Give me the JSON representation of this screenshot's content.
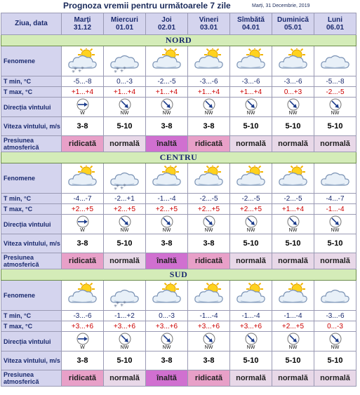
{
  "title": "Prognoza vremii pentru următoarele 7 zile",
  "date_text": "Marți, 31 Decembrie, 2019",
  "header": {
    "label": "Ziua, data",
    "days": [
      {
        "name": "Marți",
        "date": "31.12"
      },
      {
        "name": "Miercuri",
        "date": "01.01"
      },
      {
        "name": "Joi",
        "date": "02.01"
      },
      {
        "name": "Vineri",
        "date": "03.01"
      },
      {
        "name": "Sîmbătă",
        "date": "04.01"
      },
      {
        "name": "Duminică",
        "date": "05.01"
      },
      {
        "name": "Luni",
        "date": "06.01"
      }
    ]
  },
  "row_labels": {
    "fenomene": "Fenomene",
    "tmin": "T min, °C",
    "tmax": "T max, °C",
    "directia": "Direcția vîntului",
    "viteza": "Viteza vîntului, m/s",
    "presiunea": "Presiunea atmosferică"
  },
  "regions": [
    {
      "name": "NORD",
      "icons": [
        "sun-cloud-snow-icon",
        "cloud-snow-icon",
        "sun-cloud-icon",
        "sun-cloud-icon",
        "sun-cloud-icon",
        "sun-cloud-icon",
        "cloud-icon"
      ],
      "tmin": [
        "-5...-8",
        "0...-3",
        "-2...-5",
        "-3...-6",
        "-3...-6",
        "-3...-6",
        "-5...-8"
      ],
      "tmax": [
        "+1...+4",
        "+1...+4",
        "+1...+4",
        "+1...+4",
        "+1...+4",
        "0...+3",
        "-2...-5"
      ],
      "dir": [
        "W",
        "NW",
        "NW",
        "NW",
        "NW",
        "NW",
        "NW"
      ],
      "speed": [
        "3-8",
        "5-10",
        "3-8",
        "3-8",
        "5-10",
        "5-10",
        "5-10"
      ],
      "pressure": [
        "ridicată",
        "normală",
        "înaltă",
        "ridicată",
        "normală",
        "normală",
        "normală"
      ],
      "pressure_class": [
        "ridicata",
        "normala",
        "inalta",
        "ridicata",
        "normala",
        "normala",
        "normala"
      ]
    },
    {
      "name": "CENTRU",
      "icons": [
        "sun-cloud-icon",
        "cloud-snow-icon",
        "sun-cloud-icon",
        "sun-cloud-icon",
        "sun-cloud-icon",
        "sun-cloud-icon",
        "cloud-icon"
      ],
      "tmin": [
        "-4...-7",
        "-2...+1",
        "-1...-4",
        "-2...-5",
        "-2...-5",
        "-2...-5",
        "-4...-7"
      ],
      "tmax": [
        "+2...+5",
        "+2...+5",
        "+2...+5",
        "+2...+5",
        "+2...+5",
        "+1...+4",
        "-1...-4"
      ],
      "dir": [
        "W",
        "NW",
        "NW",
        "NW",
        "NW",
        "NW",
        "NW"
      ],
      "speed": [
        "3-8",
        "5-10",
        "3-8",
        "3-8",
        "5-10",
        "5-10",
        "5-10"
      ],
      "pressure": [
        "ridicată",
        "normală",
        "înaltă",
        "ridicată",
        "normală",
        "normală",
        "normală"
      ],
      "pressure_class": [
        "ridicata",
        "normala",
        "inalta",
        "ridicata",
        "normala",
        "normala",
        "normala"
      ]
    },
    {
      "name": "SUD",
      "icons": [
        "sun-cloud-icon",
        "cloud-snow-icon",
        "sun-cloud-icon",
        "sun-cloud-icon",
        "sun-cloud-icon",
        "sun-cloud-icon",
        "cloud-icon"
      ],
      "tmin": [
        "-3...-6",
        "-1...+2",
        "0...-3",
        "-1...-4",
        "-1...-4",
        "-1...-4",
        "-3...-6"
      ],
      "tmax": [
        "+3...+6",
        "+3...+6",
        "+3...+6",
        "+3...+6",
        "+3...+6",
        "+2...+5",
        "0...-3"
      ],
      "dir": [
        "W",
        "NW",
        "NW",
        "NW",
        "NW",
        "NW",
        "NW"
      ],
      "speed": [
        "3-8",
        "5-10",
        "3-8",
        "3-8",
        "5-10",
        "5-10",
        "5-10"
      ],
      "pressure": [
        "ridicată",
        "normală",
        "înaltă",
        "ridicată",
        "normală",
        "normală",
        "normală"
      ],
      "pressure_class": [
        "ridicata",
        "normala",
        "inalta",
        "ridicata",
        "normala",
        "normala",
        "normala"
      ]
    }
  ],
  "colors": {
    "header_bg": "#d4d4ee",
    "region_bg": "#d4ecb8",
    "tmax_text": "#cc0000",
    "pressure_ridicata": "#e8a0c8",
    "pressure_normala": "#e8d8e8",
    "pressure_inalta": "#d070d0"
  }
}
